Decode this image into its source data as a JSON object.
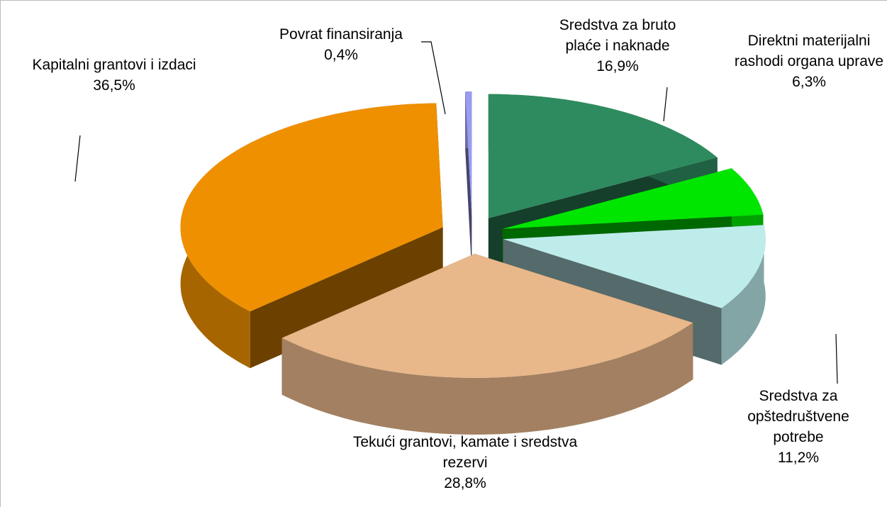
{
  "chart_data": {
    "type": "pie",
    "categories": [
      "Sredstva za bruto plaće i naknade",
      "Direktni materijalni rashodi organa uprave",
      "Sredstva za opštedruštvene potrebe",
      "Tekući grantovi, kamate i sredstva rezervi",
      "Kapitalni grantovi i izdaci",
      "Povrat finansiranja"
    ],
    "values": [
      16.9,
      6.3,
      11.2,
      28.8,
      36.5,
      0.4
    ],
    "value_labels": [
      "16,9%",
      "6,3%",
      "11,2%",
      "28,8%",
      "36,5%",
      "0,4%"
    ],
    "colors": [
      "#2e8b5f",
      "#00e600",
      "#bdeceb",
      "#e8b78a",
      "#ef9000",
      "#9a9cf0"
    ]
  }
}
